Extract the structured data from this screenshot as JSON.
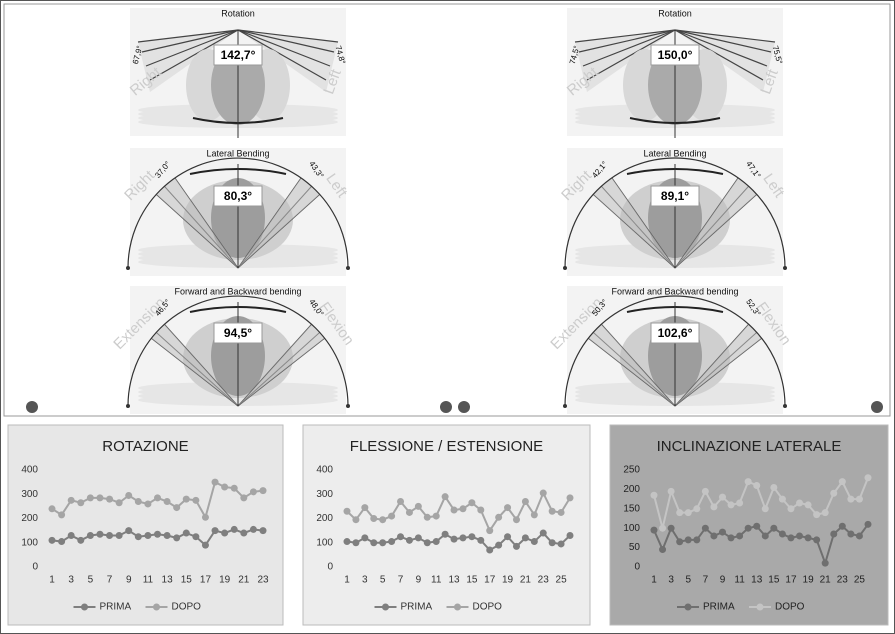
{
  "rom_panels": [
    {
      "sections": [
        {
          "title": "Rotation",
          "total": "142,7°",
          "left_angle": "67,9°",
          "right_angle": "74,8°",
          "left_side": "Right",
          "right_side": "Left"
        },
        {
          "title": "Lateral Bending",
          "total": "80,3°",
          "left_angle": "37,0°",
          "right_angle": "43,3°",
          "left_side": "Right",
          "right_side": "Left"
        },
        {
          "title": "Forward and Backward bending",
          "total": "94,5°",
          "left_angle": "46,5°",
          "right_angle": "48,0°",
          "left_side": "Extension",
          "right_side": "Flexion"
        }
      ]
    },
    {
      "sections": [
        {
          "title": "Rotation",
          "total": "150,0°",
          "left_angle": "74,5°",
          "right_angle": "75,5°",
          "left_side": "Right",
          "right_side": "Left"
        },
        {
          "title": "Lateral Bending",
          "total": "89,1°",
          "left_angle": "42,1°",
          "right_angle": "47,1°",
          "left_side": "Right",
          "right_side": "Left"
        },
        {
          "title": "Forward and Backward bending",
          "total": "102,6°",
          "left_angle": "50,3°",
          "right_angle": "52,3°",
          "left_side": "Extension",
          "right_side": "Flexion"
        }
      ]
    }
  ],
  "chart_data": [
    {
      "type": "line",
      "title": "ROTAZIONE",
      "categories": [
        "1",
        null,
        "3",
        null,
        "5",
        null,
        "7",
        null,
        "9",
        null,
        "11",
        null,
        "13",
        null,
        "15",
        null,
        "17",
        null,
        "19",
        null,
        "21",
        null,
        "23"
      ],
      "series": [
        {
          "name": "PRIMA",
          "color": "#7f7f7f",
          "values": [
            110,
            105,
            130,
            110,
            130,
            135,
            130,
            130,
            150,
            125,
            130,
            135,
            130,
            120,
            140,
            125,
            90,
            150,
            140,
            155,
            140,
            155,
            150
          ]
        },
        {
          "name": "DOPO",
          "color": "#a5a5a5",
          "values": [
            240,
            215,
            275,
            265,
            285,
            285,
            280,
            265,
            295,
            270,
            260,
            285,
            270,
            245,
            280,
            275,
            205,
            350,
            330,
            325,
            285,
            310,
            315
          ]
        }
      ],
      "ylim": [
        0,
        400
      ],
      "yticks": [
        0,
        100,
        200,
        300,
        400
      ],
      "grid": false,
      "legend": "bottom"
    },
    {
      "type": "line",
      "title": "FLESSIONE / ESTENSIONE",
      "categories": [
        "1",
        null,
        "3",
        null,
        "5",
        null,
        "7",
        null,
        "9",
        null,
        "11",
        null,
        "13",
        null,
        "15",
        null,
        "17",
        null,
        "19",
        null,
        "21",
        null,
        "23",
        null,
        "25",
        null
      ],
      "series": [
        {
          "name": "PRIMA",
          "color": "#7f7f7f",
          "values": [
            105,
            100,
            120,
            100,
            100,
            105,
            125,
            110,
            120,
            100,
            105,
            135,
            115,
            120,
            125,
            110,
            70,
            90,
            125,
            85,
            120,
            105,
            140,
            100,
            95,
            130
          ]
        },
        {
          "name": "DOPO",
          "color": "#a5a5a5",
          "values": [
            230,
            195,
            245,
            200,
            195,
            210,
            270,
            225,
            250,
            205,
            210,
            290,
            235,
            240,
            265,
            235,
            150,
            205,
            245,
            195,
            270,
            215,
            305,
            230,
            225,
            285
          ]
        }
      ],
      "ylim": [
        0,
        400
      ],
      "yticks": [
        0,
        100,
        200,
        300,
        400
      ],
      "grid": false,
      "legend": "bottom"
    },
    {
      "type": "line",
      "title": "INCLINAZIONE LATERALE",
      "categories": [
        "1",
        null,
        "3",
        null,
        "5",
        null,
        "7",
        null,
        "9",
        null,
        "11",
        null,
        "13",
        null,
        "15",
        null,
        "17",
        null,
        "19",
        null,
        "21",
        null,
        "23",
        null,
        "25",
        null
      ],
      "series": [
        {
          "name": "PRIMA",
          "color": "#6f6f6f",
          "values": [
            95,
            45,
            100,
            65,
            70,
            70,
            100,
            80,
            90,
            75,
            80,
            100,
            105,
            80,
            100,
            85,
            75,
            80,
            75,
            70,
            10,
            85,
            105,
            85,
            80,
            110
          ]
        },
        {
          "name": "DOPO",
          "color": "#c4c4c4",
          "values": [
            185,
            100,
            195,
            140,
            140,
            150,
            195,
            155,
            180,
            160,
            165,
            220,
            210,
            150,
            205,
            175,
            150,
            165,
            160,
            135,
            140,
            190,
            220,
            175,
            175,
            230
          ]
        }
      ],
      "ylim": [
        0,
        250
      ],
      "yticks": [
        0,
        50,
        100,
        150,
        200,
        250
      ],
      "grid": false,
      "legend": "bottom"
    }
  ]
}
